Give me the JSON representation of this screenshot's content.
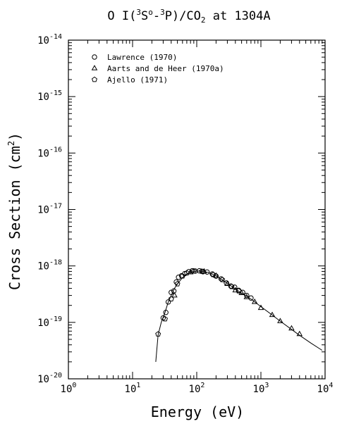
{
  "chart_data": {
    "type": "scatter",
    "title_parts": {
      "pre": "O I(",
      "sup1": "3",
      "mid1": "S",
      "sup2": "o",
      "mid2": "-",
      "sup3": "3",
      "mid3": "P)/CO",
      "sub": "2",
      "post": " at 1304A"
    },
    "xlabel": "Energy (eV)",
    "ylabel_main": "Cross Section (cm",
    "ylabel_sup": "2",
    "ylabel_end": ")",
    "xscale": "log",
    "yscale": "log",
    "xlim": [
      1,
      10000
    ],
    "ylim": [
      1e-20,
      1e-14
    ],
    "x_ticks": [
      {
        "value": 1,
        "base": "10",
        "exp": "0"
      },
      {
        "value": 10,
        "base": "10",
        "exp": "1"
      },
      {
        "value": 100,
        "base": "10",
        "exp": "2"
      },
      {
        "value": 1000,
        "base": "10",
        "exp": "3"
      },
      {
        "value": 10000,
        "base": "10",
        "exp": "4"
      }
    ],
    "y_ticks": [
      {
        "value": 1e-20,
        "base": "10",
        "exp": "-20"
      },
      {
        "value": 1e-19,
        "base": "10",
        "exp": "-19"
      },
      {
        "value": 1e-18,
        "base": "10",
        "exp": "-18"
      },
      {
        "value": 1e-17,
        "base": "10",
        "exp": "-17"
      },
      {
        "value": 1e-16,
        "base": "10",
        "exp": "-16"
      },
      {
        "value": 1e-15,
        "base": "10",
        "exp": "-15"
      },
      {
        "value": 1e-14,
        "base": "10",
        "exp": "-14"
      }
    ],
    "grid": false,
    "legend_position": "top-left",
    "series": [
      {
        "name": "Lawrence (1970)",
        "marker": "circle",
        "points": [
          [
            30,
            1.2e-19
          ],
          [
            33,
            1.5e-19
          ],
          [
            36,
            2.3e-19
          ],
          [
            40,
            3.4e-19
          ],
          [
            44,
            3.6e-19
          ],
          [
            48,
            5.2e-19
          ],
          [
            52,
            6.3e-19
          ],
          [
            58,
            6.7e-19
          ],
          [
            65,
            7.3e-19
          ],
          [
            75,
            7.9e-19
          ],
          [
            85,
            8.2e-19
          ],
          [
            95,
            8.1e-19
          ],
          [
            110,
            8.2e-19
          ],
          [
            125,
            7.9e-19
          ],
          [
            145,
            7.8e-19
          ],
          [
            175,
            7.2e-19
          ],
          [
            200,
            6.6e-19
          ],
          [
            240,
            5.9e-19
          ],
          [
            290,
            5e-19
          ],
          [
            340,
            4.4e-19
          ],
          [
            390,
            4.2e-19
          ],
          [
            450,
            3.7e-19
          ],
          [
            520,
            3.4e-19
          ],
          [
            600,
            3e-19
          ],
          [
            700,
            2.7e-19
          ]
        ]
      },
      {
        "name": "Aarts and de Heer (1970a)",
        "marker": "triangle",
        "points": [
          [
            45,
            3e-19
          ],
          [
            80,
            7.7e-19
          ],
          [
            130,
            8e-19
          ],
          [
            200,
            6.7e-19
          ],
          [
            300,
            4.8e-19
          ],
          [
            400,
            3.7e-19
          ],
          [
            500,
            3.3e-19
          ],
          [
            600,
            2.8e-19
          ],
          [
            800,
            2.3e-19
          ],
          [
            1000,
            1.8e-19
          ],
          [
            1500,
            1.35e-19
          ],
          [
            2000,
            1.05e-19
          ],
          [
            3000,
            7.8e-20
          ],
          [
            4000,
            6.2e-20
          ]
        ]
      },
      {
        "name": "Ajello (1971)",
        "marker": "pentagon",
        "points": [
          [
            25,
            6.2e-20
          ],
          [
            32,
            1.15e-19
          ],
          [
            40,
            2.6e-19
          ],
          [
            50,
            4.8e-19
          ],
          [
            60,
            6.6e-19
          ],
          [
            70,
            7.5e-19
          ],
          [
            90,
            8.1e-19
          ],
          [
            120,
            8e-19
          ],
          [
            180,
            7e-19
          ],
          [
            250,
            5.7e-19
          ],
          [
            350,
            4.3e-19
          ],
          [
            450,
            3.6e-19
          ]
        ]
      }
    ],
    "fit_curve": [
      [
        23,
        2e-20
      ],
      [
        25,
        6e-20
      ],
      [
        28,
        1e-19
      ],
      [
        32,
        1.5e-19
      ],
      [
        36,
        2.3e-19
      ],
      [
        40,
        3e-19
      ],
      [
        45,
        4e-19
      ],
      [
        50,
        4.8e-19
      ],
      [
        60,
        6.2e-19
      ],
      [
        70,
        7.2e-19
      ],
      [
        80,
        7.8e-19
      ],
      [
        100,
        8.1e-19
      ],
      [
        120,
        8.1e-19
      ],
      [
        150,
        7.7e-19
      ],
      [
        200,
        6.7e-19
      ],
      [
        300,
        4.9e-19
      ],
      [
        400,
        3.9e-19
      ],
      [
        500,
        3.3e-19
      ],
      [
        700,
        2.6e-19
      ],
      [
        1000,
        1.9e-19
      ],
      [
        1500,
        1.35e-19
      ],
      [
        2000,
        1.05e-19
      ],
      [
        3000,
        7.5e-20
      ],
      [
        4000,
        5.9e-20
      ],
      [
        6000,
        4.3e-20
      ],
      [
        9000,
        3.2e-20
      ]
    ]
  }
}
